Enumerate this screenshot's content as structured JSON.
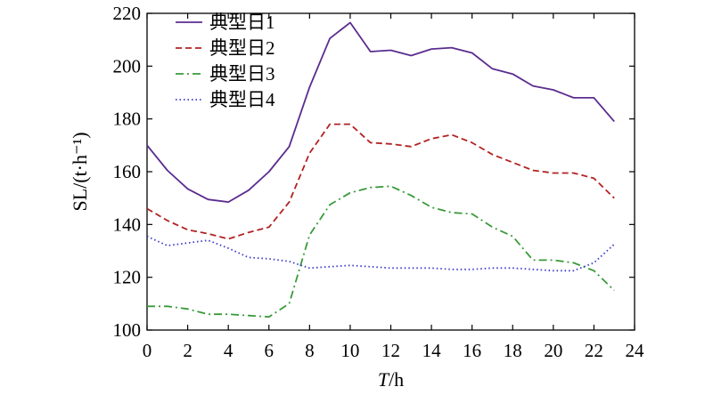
{
  "chart_data": {
    "type": "line",
    "xlabel": "T/h",
    "ylabel": "SL/(t·h⁻¹)",
    "xlim": [
      0,
      24
    ],
    "ylim": [
      100,
      220
    ],
    "xticks": [
      0,
      2,
      4,
      6,
      8,
      10,
      12,
      14,
      16,
      18,
      20,
      22,
      24
    ],
    "yticks": [
      100,
      120,
      140,
      160,
      180,
      200,
      220
    ],
    "grid": false,
    "legend_position": "top-left",
    "x": [
      0,
      1,
      2,
      3,
      4,
      5,
      6,
      7,
      8,
      9,
      10,
      11,
      12,
      13,
      14,
      15,
      16,
      17,
      18,
      19,
      20,
      21,
      22,
      23
    ],
    "series": [
      {
        "name": "典型日1",
        "color": "#5b2c8f",
        "dash": "solid",
        "values": [
          170,
          160.5,
          153.5,
          149.5,
          148.5,
          153,
          160,
          169.5,
          192,
          210.5,
          216.5,
          205.5,
          206,
          204,
          206.5,
          207,
          205,
          199,
          197,
          192.5,
          191,
          188,
          188,
          179
        ]
      },
      {
        "name": "典型日2",
        "color": "#b22222",
        "dash": "dashed",
        "values": [
          146,
          141.5,
          138,
          136.5,
          134.5,
          137,
          139,
          148.5,
          167,
          178,
          178,
          171,
          170.5,
          169.5,
          172.5,
          174,
          171,
          166.5,
          163.5,
          160.5,
          159.5,
          159.5,
          157.5,
          150
        ]
      },
      {
        "name": "典型日3",
        "color": "#3a9a3a",
        "dash": "dashdot",
        "values": [
          109,
          109,
          108,
          106,
          106,
          105.5,
          105,
          110,
          136,
          147.5,
          152,
          154,
          154.5,
          151,
          146.5,
          144.5,
          144,
          139,
          135.5,
          126.5,
          126.5,
          125.5,
          122.5,
          115
        ]
      },
      {
        "name": "典型日4",
        "color": "#3a3ac8",
        "dash": "dotted",
        "values": [
          135.5,
          132,
          133,
          134,
          131,
          127.5,
          127,
          126,
          123.5,
          124,
          124.5,
          124,
          123.5,
          123.5,
          123.5,
          123,
          123,
          123.5,
          123.5,
          123,
          122.5,
          122.5,
          125.5,
          132.5
        ]
      }
    ]
  }
}
